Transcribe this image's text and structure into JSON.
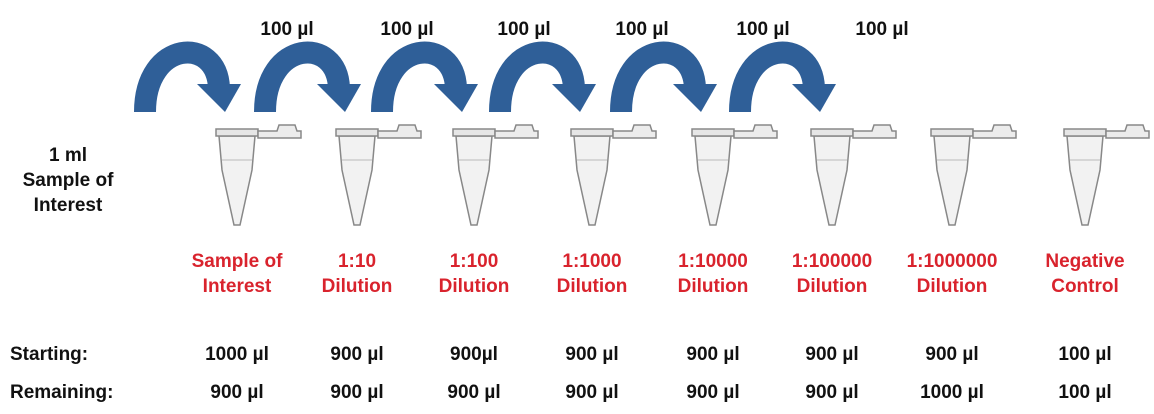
{
  "transfers": [
    "100 µl",
    "100 µl",
    "100 µl",
    "100 µl",
    "100 µl",
    "100 µl"
  ],
  "source": {
    "lines": [
      "1 ml",
      "Sample of",
      "Interest"
    ]
  },
  "tubes": [
    {
      "lines": [
        "Sample of",
        "Interest"
      ]
    },
    {
      "lines": [
        "1:10",
        "Dilution"
      ]
    },
    {
      "lines": [
        "1:100",
        "Dilution"
      ]
    },
    {
      "lines": [
        "1:1000",
        "Dilution"
      ]
    },
    {
      "lines": [
        "1:10000",
        "Dilution"
      ]
    },
    {
      "lines": [
        "1:100000",
        "Dilution"
      ]
    },
    {
      "lines": [
        "1:1000000",
        "Dilution"
      ]
    },
    {
      "lines": [
        "Negative",
        "Control"
      ]
    }
  ],
  "rows": [
    {
      "label": "Starting:",
      "values": [
        "1000 µl",
        "900 µl",
        "900µl",
        "900 µl",
        "900 µl",
        "900 µl",
        "900 µl",
        "100 µl"
      ]
    },
    {
      "label": "Remaining:",
      "values": [
        "900 µl",
        "900 µl",
        "900 µl",
        "900 µl",
        "900 µl",
        "900 µl",
        "1000 µl",
        "100 µl"
      ]
    }
  ]
}
